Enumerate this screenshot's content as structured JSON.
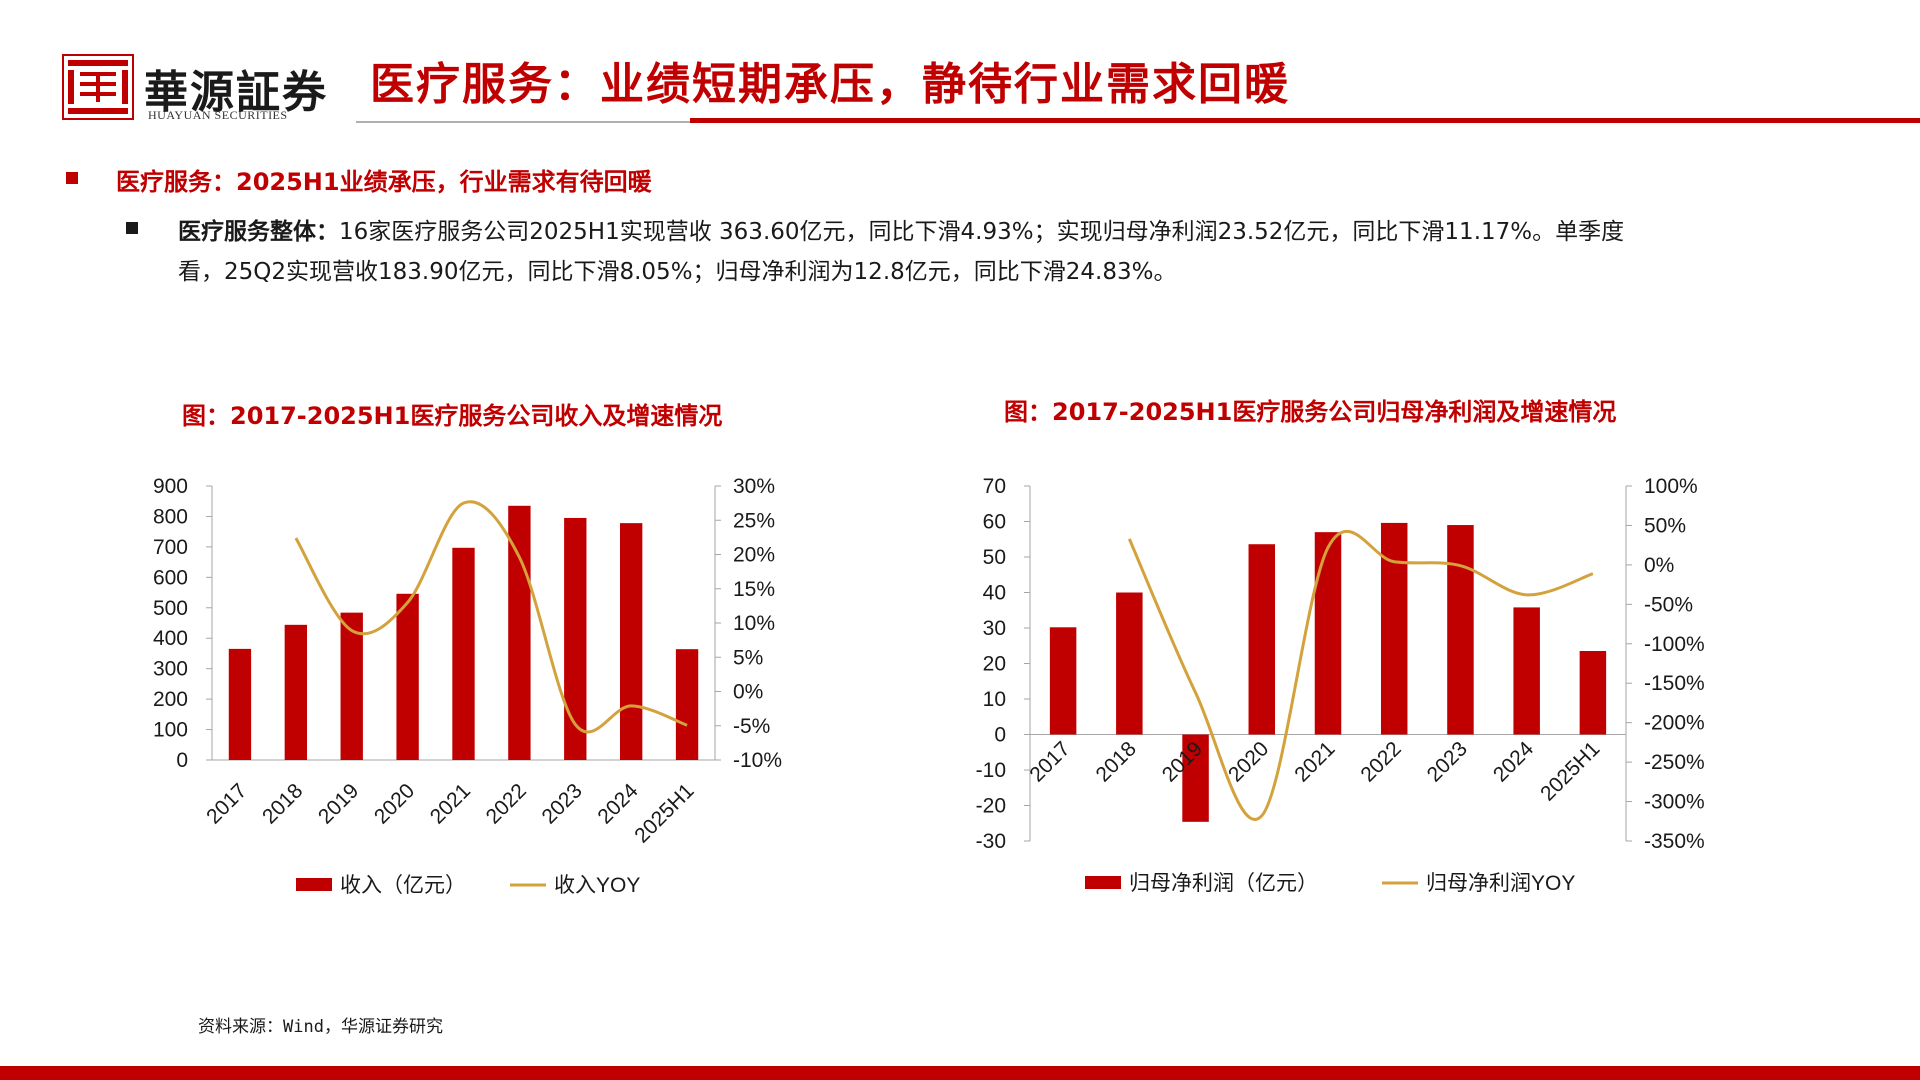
{
  "brand": {
    "name_cn": "華源証券",
    "name_en": "HUAYUAN SECURITIES",
    "accent": "#c00000"
  },
  "page": {
    "title": "医疗服务：业绩短期承压，静待行业需求回暖"
  },
  "section": {
    "heading": "医疗服务：2025H1业绩承压，行业需求有待回暖",
    "bullet_label": "医疗服务整体：",
    "bullet_text_line1": "16家医疗服务公司2025H1实现营收 363.60亿元，同比下滑4.93%；实现归母净利润23.52亿元，同比下滑11.17%。单季度",
    "bullet_text_line2": "看，25Q2实现营收183.90亿元，同比下滑8.05%；归母净利润为12.8亿元，同比下滑24.83%。"
  },
  "source": "资料来源：Wind，华源证券研究",
  "colors": {
    "bar": "#c00000",
    "line": "#d4a23c",
    "axis": "#a6a6a6"
  },
  "chart_data": [
    {
      "type": "bar",
      "title": "图：2017-2025H1医疗服务公司收入及增速情况",
      "categories": [
        "2017",
        "2018",
        "2019",
        "2020",
        "2021",
        "2022",
        "2023",
        "2024",
        "2025H1"
      ],
      "ylim": [
        0,
        900
      ],
      "yticks": [
        0,
        100,
        200,
        300,
        400,
        500,
        600,
        700,
        800,
        900
      ],
      "y2lim": [
        -10,
        30
      ],
      "y2ticks": [
        -10,
        -5,
        0,
        5,
        10,
        15,
        20,
        25,
        30
      ],
      "y2_unit": "%",
      "grid": false,
      "legend": "bottom",
      "series": [
        {
          "name": "收入（亿元）",
          "kind": "bar",
          "axis": "left",
          "values": [
            365,
            444,
            484,
            546,
            697,
            835,
            795,
            778,
            364
          ]
        },
        {
          "name": "收入YOY",
          "kind": "line",
          "axis": "right",
          "values": [
            null,
            22.4,
            8.9,
            13.0,
            27.5,
            19.6,
            -4.8,
            -2.1,
            -4.93
          ]
        }
      ]
    },
    {
      "type": "bar",
      "title": "图：2017-2025H1医疗服务公司归母净利润及增速情况",
      "categories": [
        "2017",
        "2018",
        "2019",
        "2020",
        "2021",
        "2022",
        "2023",
        "2024",
        "2025H1"
      ],
      "ylim": [
        -30,
        70
      ],
      "yticks": [
        -30,
        -20,
        -10,
        0,
        10,
        20,
        30,
        40,
        50,
        60,
        70
      ],
      "y2lim": [
        -350,
        100
      ],
      "y2ticks": [
        -350,
        -300,
        -250,
        -200,
        -150,
        -100,
        -50,
        0,
        50,
        100
      ],
      "y2_unit": "%",
      "grid": false,
      "legend": "bottom",
      "series": [
        {
          "name": "归母净利润（亿元）",
          "kind": "bar",
          "axis": "left",
          "values": [
            30.2,
            40.0,
            -24.6,
            53.6,
            57.0,
            59.6,
            59.0,
            35.8,
            23.52
          ]
        },
        {
          "name": "归母净利润YOY",
          "kind": "line",
          "axis": "right",
          "values": [
            null,
            33,
            -162,
            -318,
            22,
            4,
            -1,
            -38,
            -11.17
          ]
        }
      ]
    }
  ]
}
